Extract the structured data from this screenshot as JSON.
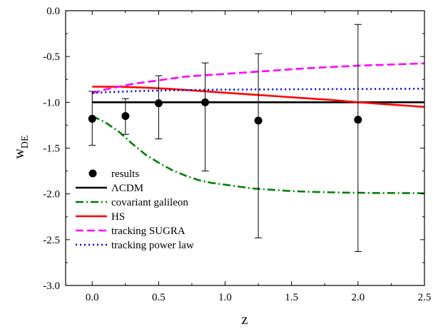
{
  "chart_data": {
    "type": "line",
    "title": "",
    "xlabel": "z",
    "ylabel_main": "w",
    "ylabel_sub": "DE",
    "xlim": [
      -0.2,
      2.5
    ],
    "ylim": [
      -3.0,
      0.0
    ],
    "x_ticks": [
      0.0,
      0.5,
      1.0,
      1.5,
      2.0,
      2.5
    ],
    "x_tick_labels": [
      "0.0",
      "0.5",
      "1.0",
      "1.5",
      "2.0",
      "2.5"
    ],
    "y_ticks": [
      0.0,
      -0.5,
      -1.0,
      -1.5,
      -2.0,
      -2.5,
      -3.0
    ],
    "y_tick_labels": [
      "0.0",
      "-0.5",
      "-1.0",
      "-1.5",
      "-2.0",
      "-2.5",
      "-3.0"
    ],
    "grid": false,
    "legend_position": "bottom-left",
    "points": {
      "name": "results",
      "x": [
        0.0,
        0.25,
        0.5,
        0.85,
        1.25,
        2.0
      ],
      "y": [
        -1.18,
        -1.15,
        -1.01,
        -1.0,
        -1.2,
        -1.19
      ],
      "err_low": [
        -1.47,
        -1.35,
        -1.4,
        -1.75,
        -2.48,
        -2.63
      ],
      "err_high": [
        -0.88,
        -0.96,
        -0.71,
        -0.57,
        -0.47,
        -0.15
      ]
    },
    "series": [
      {
        "name": "ΛCDM",
        "color": "#000000",
        "style": "solid",
        "x": [
          0.0,
          2.5
        ],
        "y": [
          -1.0,
          -1.0
        ]
      },
      {
        "name": "covariant galileon",
        "color": "#008000",
        "style": "dashdot",
        "x": [
          0.0,
          0.1,
          0.2,
          0.3,
          0.4,
          0.5,
          0.6,
          0.7,
          0.8,
          0.9,
          1.0,
          1.1,
          1.2,
          1.3,
          1.4,
          1.5,
          1.6,
          1.7,
          1.8,
          1.9,
          2.0,
          2.1,
          2.2,
          2.3,
          2.4,
          2.5
        ],
        "y": [
          -1.15,
          -1.22,
          -1.32,
          -1.45,
          -1.57,
          -1.66,
          -1.74,
          -1.8,
          -1.85,
          -1.88,
          -1.9,
          -1.92,
          -1.94,
          -1.95,
          -1.96,
          -1.97,
          -1.975,
          -1.98,
          -1.983,
          -1.986,
          -1.988,
          -1.99,
          -1.99,
          -1.991,
          -1.992,
          -1.993
        ]
      },
      {
        "name": "HS",
        "color": "#ff0000",
        "style": "solid",
        "x": [
          0.0,
          0.2,
          0.4,
          0.6,
          0.8,
          1.0,
          1.2,
          1.4,
          1.6,
          1.8,
          2.0,
          2.2,
          2.4,
          2.5
        ],
        "y": [
          -0.83,
          -0.83,
          -0.84,
          -0.855,
          -0.875,
          -0.895,
          -0.915,
          -0.935,
          -0.955,
          -0.975,
          -1.0,
          -1.02,
          -1.04,
          -1.05
        ]
      },
      {
        "name": "tracking SUGRA",
        "color": "#ff00ff",
        "style": "dashed",
        "x": [
          0.0,
          0.1,
          0.2,
          0.3,
          0.5,
          0.7,
          1.0,
          1.3,
          1.6,
          2.0,
          2.3,
          2.5
        ],
        "y": [
          -0.9,
          -0.86,
          -0.83,
          -0.8,
          -0.76,
          -0.72,
          -0.69,
          -0.66,
          -0.63,
          -0.6,
          -0.585,
          -0.575
        ]
      },
      {
        "name": "tracking power law",
        "color": "#0000cc",
        "style": "dotted",
        "x": [
          0.0,
          0.1,
          0.2,
          0.4,
          0.6,
          0.8,
          1.0,
          1.5,
          2.0,
          2.5
        ],
        "y": [
          -0.9,
          -0.89,
          -0.885,
          -0.875,
          -0.87,
          -0.865,
          -0.862,
          -0.858,
          -0.855,
          -0.852
        ]
      }
    ]
  }
}
